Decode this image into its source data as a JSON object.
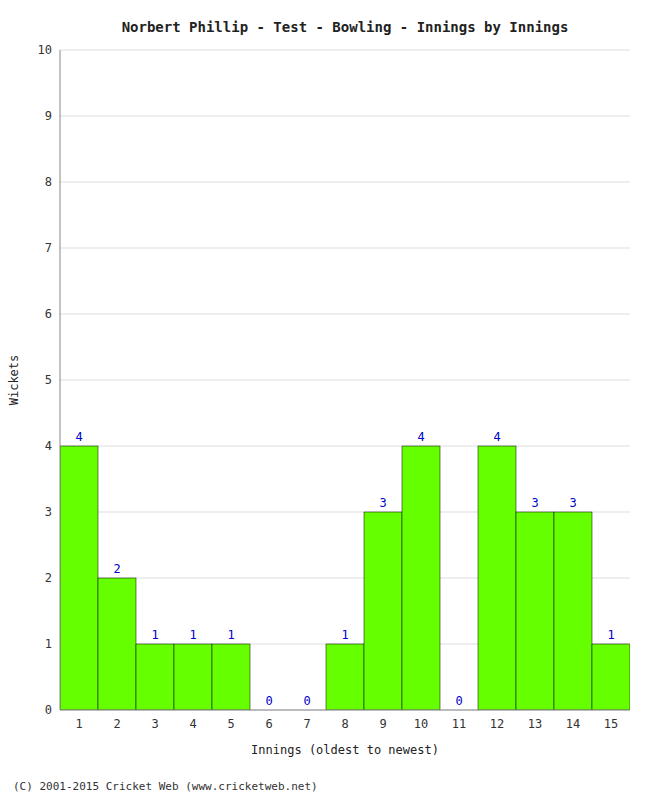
{
  "chart_data": {
    "type": "bar",
    "title": "Norbert Phillip - Test - Bowling - Innings by Innings",
    "xlabel": "Innings (oldest to newest)",
    "ylabel": "Wickets",
    "categories": [
      "1",
      "2",
      "3",
      "4",
      "5",
      "6",
      "7",
      "8",
      "9",
      "10",
      "11",
      "12",
      "13",
      "14",
      "15"
    ],
    "values": [
      4,
      2,
      1,
      1,
      1,
      0,
      0,
      1,
      3,
      4,
      0,
      4,
      3,
      3,
      1
    ],
    "color": "#66ff00",
    "ylim": [
      0,
      10
    ],
    "yticks": [
      0,
      1,
      2,
      3,
      4,
      5,
      6,
      7,
      8,
      9,
      10
    ],
    "grid": true,
    "data_labels": true,
    "footer": "(C) 2001-2015 Cricket Web (www.cricketweb.net)"
  }
}
